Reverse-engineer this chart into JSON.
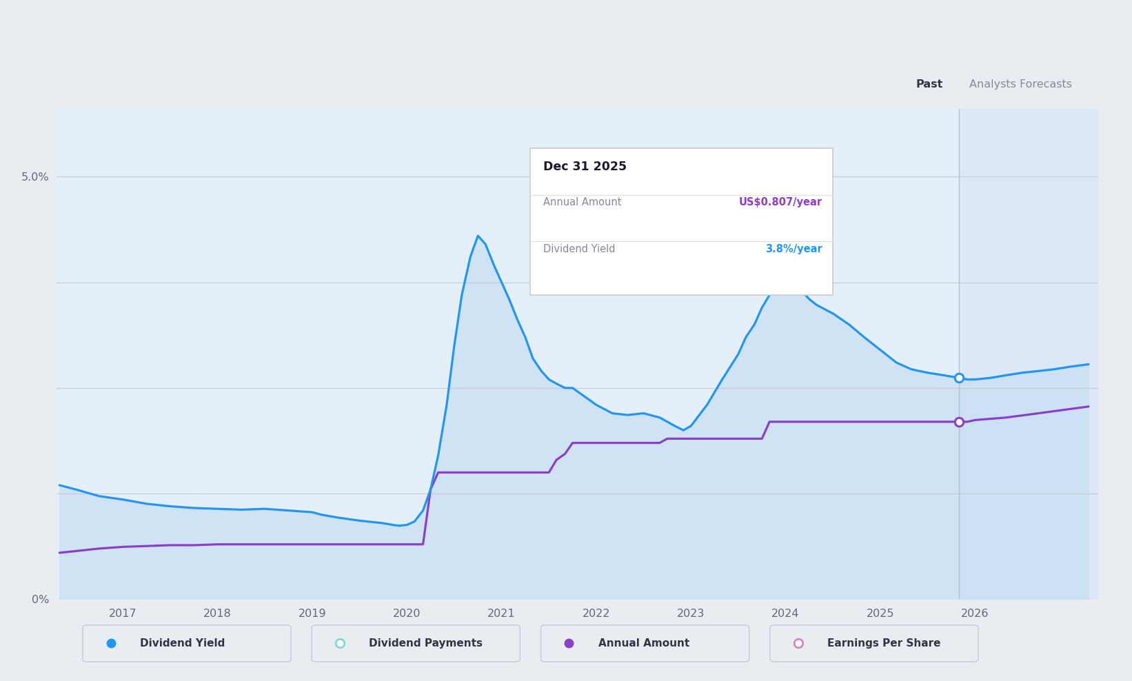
{
  "background_color": "#e8edf2",
  "plot_bg_color": "#edf2f7",
  "ylim": [
    0,
    5.8
  ],
  "xlim": [
    2016.3,
    2027.3
  ],
  "xtick_positions": [
    2017,
    2018,
    2019,
    2020,
    2021,
    2022,
    2023,
    2024,
    2025,
    2026
  ],
  "past_cutoff": 2025.83,
  "forecast_bg_color": "#dce8f5",
  "past_bg_color": "#e4eff8",
  "dividend_yield_x": [
    2016.33,
    2016.5,
    2016.75,
    2017.0,
    2017.25,
    2017.5,
    2017.75,
    2018.0,
    2018.25,
    2018.5,
    2018.75,
    2019.0,
    2019.1,
    2019.25,
    2019.5,
    2019.75,
    2019.85,
    2019.92,
    2020.0,
    2020.08,
    2020.17,
    2020.25,
    2020.33,
    2020.42,
    2020.5,
    2020.58,
    2020.67,
    2020.75,
    2020.83,
    2020.92,
    2021.0,
    2021.08,
    2021.17,
    2021.25,
    2021.33,
    2021.42,
    2021.5,
    2021.58,
    2021.67,
    2021.75,
    2022.0,
    2022.17,
    2022.33,
    2022.5,
    2022.67,
    2022.75,
    2022.83,
    2022.92,
    2023.0,
    2023.17,
    2023.33,
    2023.5,
    2023.58,
    2023.67,
    2023.75,
    2023.83,
    2023.92,
    2024.0,
    2024.08,
    2024.17,
    2024.25,
    2024.33,
    2024.5,
    2024.67,
    2024.83,
    2025.0,
    2025.17,
    2025.33,
    2025.5,
    2025.67,
    2025.83,
    2025.92,
    2026.0,
    2026.17,
    2026.33,
    2026.5,
    2026.67,
    2026.83,
    2027.0,
    2027.2
  ],
  "dividend_yield_y": [
    1.35,
    1.3,
    1.22,
    1.18,
    1.13,
    1.1,
    1.08,
    1.07,
    1.06,
    1.07,
    1.05,
    1.03,
    1.0,
    0.97,
    0.93,
    0.9,
    0.88,
    0.87,
    0.88,
    0.92,
    1.05,
    1.3,
    1.7,
    2.3,
    3.0,
    3.6,
    4.05,
    4.3,
    4.2,
    3.95,
    3.75,
    3.55,
    3.3,
    3.1,
    2.85,
    2.7,
    2.6,
    2.55,
    2.5,
    2.5,
    2.3,
    2.2,
    2.18,
    2.2,
    2.15,
    2.1,
    2.05,
    2.0,
    2.05,
    2.3,
    2.6,
    2.9,
    3.1,
    3.25,
    3.45,
    3.6,
    3.7,
    3.75,
    3.72,
    3.65,
    3.55,
    3.48,
    3.38,
    3.25,
    3.1,
    2.95,
    2.8,
    2.72,
    2.68,
    2.65,
    2.62,
    2.6,
    2.6,
    2.62,
    2.65,
    2.68,
    2.7,
    2.72,
    2.75,
    2.78
  ],
  "dividend_yield_color": "#2196f3",
  "dividend_yield_fill_color": "#c8dff5",
  "annual_amount_x": [
    2016.33,
    2016.5,
    2016.75,
    2017.0,
    2017.25,
    2017.5,
    2017.75,
    2018.0,
    2018.25,
    2018.5,
    2018.75,
    2018.83,
    2018.92,
    2019.0,
    2019.17,
    2019.33,
    2019.5,
    2019.67,
    2019.75,
    2019.83,
    2019.92,
    2020.0,
    2020.08,
    2020.17,
    2020.25,
    2020.33,
    2020.42,
    2020.5,
    2020.58,
    2020.67,
    2020.75,
    2021.0,
    2021.08,
    2021.17,
    2021.33,
    2021.5,
    2021.58,
    2021.67,
    2021.75,
    2021.83,
    2021.92,
    2022.0,
    2022.08,
    2022.17,
    2022.5,
    2022.67,
    2022.75,
    2022.83,
    2022.92,
    2023.0,
    2023.5,
    2023.67,
    2023.75,
    2023.83,
    2024.0,
    2024.5,
    2025.0,
    2025.5,
    2025.83,
    2025.92,
    2026.0,
    2026.33,
    2026.67,
    2027.0,
    2027.2
  ],
  "annual_amount_y": [
    0.55,
    0.57,
    0.6,
    0.62,
    0.63,
    0.64,
    0.64,
    0.65,
    0.65,
    0.65,
    0.65,
    0.65,
    0.65,
    0.65,
    0.65,
    0.65,
    0.65,
    0.65,
    0.65,
    0.65,
    0.65,
    0.65,
    0.65,
    0.65,
    1.3,
    1.5,
    1.5,
    1.5,
    1.5,
    1.5,
    1.5,
    1.5,
    1.5,
    1.5,
    1.5,
    1.5,
    1.65,
    1.72,
    1.85,
    1.85,
    1.85,
    1.85,
    1.85,
    1.85,
    1.85,
    1.85,
    1.9,
    1.9,
    1.9,
    1.9,
    1.9,
    1.9,
    1.9,
    2.1,
    2.1,
    2.1,
    2.1,
    2.1,
    2.1,
    2.1,
    2.12,
    2.15,
    2.2,
    2.25,
    2.28
  ],
  "annual_amount_color": "#8b3fc8",
  "tooltip_date": "Dec 31 2025",
  "tooltip_label1": "Annual Amount",
  "tooltip_value1": "US$0.807/year",
  "tooltip_label2": "Dividend Yield",
  "tooltip_value2": "3.8%/year",
  "tooltip_value1_color": "#8b3fc8",
  "tooltip_value2_color": "#2196f3",
  "marker_dy_x": 2025.83,
  "marker_dy_y": 2.62,
  "marker_aa_x": 2025.83,
  "marker_aa_y": 2.1,
  "legend_items": [
    {
      "label": "Dividend Yield",
      "color": "#2196f3",
      "filled": true
    },
    {
      "label": "Dividend Payments",
      "color": "#80d8d0",
      "filled": false
    },
    {
      "label": "Annual Amount",
      "color": "#8b3fc8",
      "filled": true
    },
    {
      "label": "Earnings Per Share",
      "color": "#e080c0",
      "filled": false
    }
  ]
}
